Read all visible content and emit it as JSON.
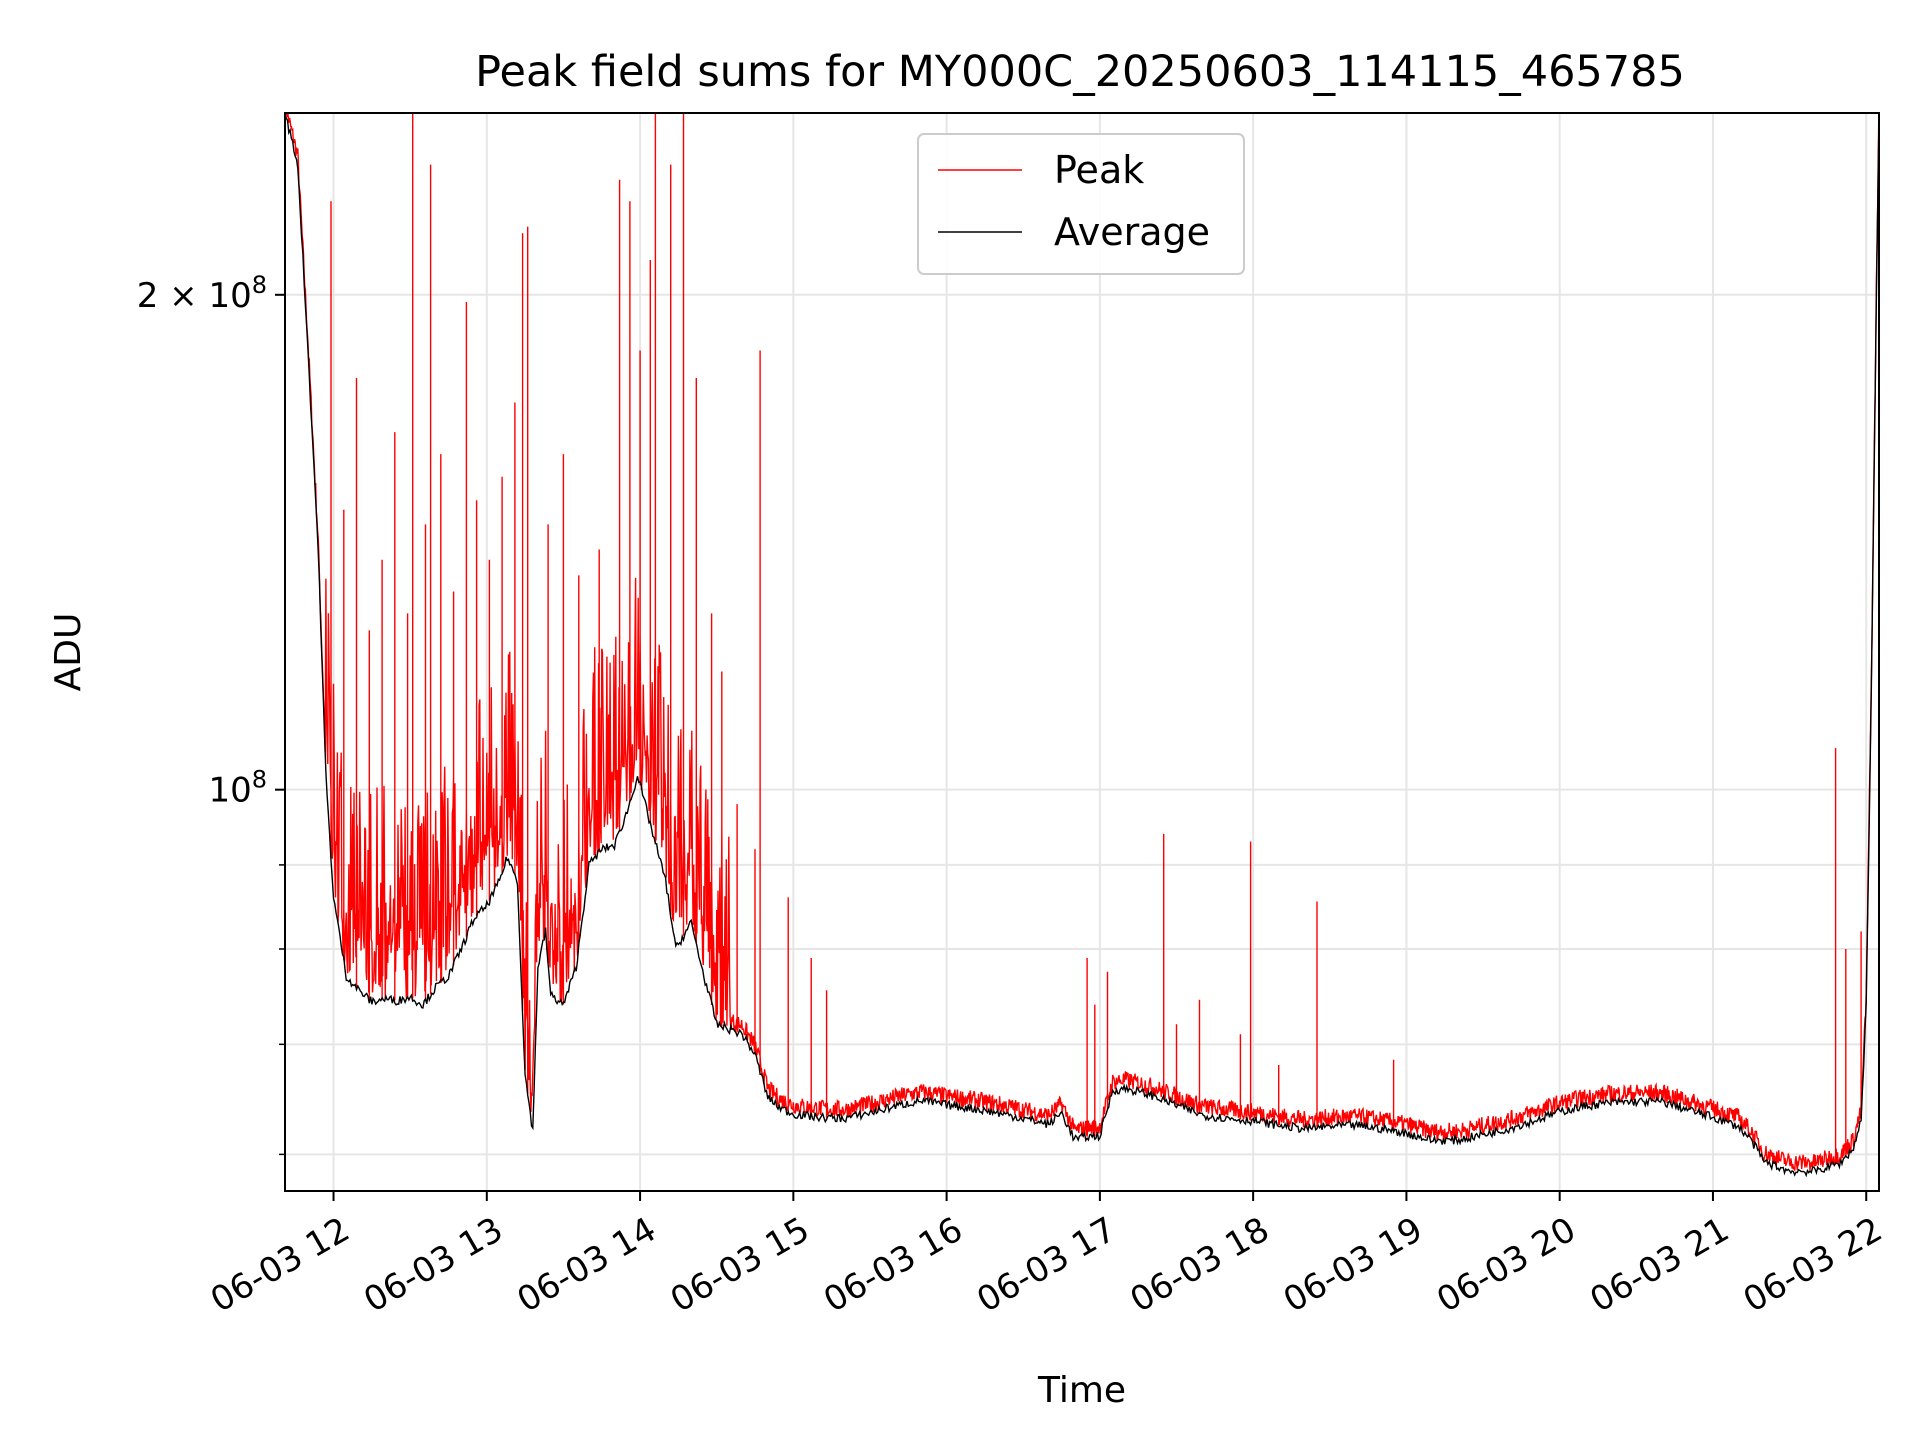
{
  "chart_data": {
    "type": "line",
    "title": "Peak field sums for MY000C_20250603_114115_465785",
    "xlabel": "Time",
    "ylabel": "ADU",
    "y_scale": "log",
    "ylim": [
      57000000,
      258000000
    ],
    "xlim": [
      "2025-06-03 11:41",
      "2025-06-03 22:05"
    ],
    "grid": true,
    "legend_position": "top-center",
    "x_ticks": [
      {
        "t": "2025-06-03 12:00",
        "label": "06-03 12"
      },
      {
        "t": "2025-06-03 13:00",
        "label": "06-03 13"
      },
      {
        "t": "2025-06-03 14:00",
        "label": "06-03 14"
      },
      {
        "t": "2025-06-03 15:00",
        "label": "06-03 15"
      },
      {
        "t": "2025-06-03 16:00",
        "label": "06-03 16"
      },
      {
        "t": "2025-06-03 17:00",
        "label": "06-03 17"
      },
      {
        "t": "2025-06-03 18:00",
        "label": "06-03 18"
      },
      {
        "t": "2025-06-03 19:00",
        "label": "06-03 19"
      },
      {
        "t": "2025-06-03 20:00",
        "label": "06-03 20"
      },
      {
        "t": "2025-06-03 21:00",
        "label": "06-03 21"
      },
      {
        "t": "2025-06-03 22:00",
        "label": "06-03 22"
      }
    ],
    "y_major_ticks": [
      {
        "value": 100000000,
        "base": "10",
        "exp": "8",
        "coef": ""
      },
      {
        "value": 200000000,
        "base": "10",
        "exp": "8",
        "coef": "2 × "
      }
    ],
    "y_minor_ticks": [
      60000000,
      70000000,
      80000000,
      90000000
    ],
    "series": [
      {
        "name": "Average",
        "color": "#000000",
        "points": [
          [
            "2025-06-03 11:41",
            258000000
          ],
          [
            "2025-06-03 11:46",
            240000000
          ],
          [
            "2025-06-03 11:50",
            185000000
          ],
          [
            "2025-06-03 11:54",
            140000000
          ],
          [
            "2025-06-03 11:57",
            102000000
          ],
          [
            "2025-06-03 12:00",
            86000000
          ],
          [
            "2025-06-03 12:05",
            77000000
          ],
          [
            "2025-06-03 12:10",
            75500000
          ],
          [
            "2025-06-03 12:15",
            74300000
          ],
          [
            "2025-06-03 12:20",
            74600000
          ],
          [
            "2025-06-03 12:25",
            74400000
          ],
          [
            "2025-06-03 12:30",
            74800000
          ],
          [
            "2025-06-03 12:35",
            74000000
          ],
          [
            "2025-06-03 12:40",
            75800000
          ],
          [
            "2025-06-03 12:45",
            77000000
          ],
          [
            "2025-06-03 12:50",
            80000000
          ],
          [
            "2025-06-03 12:55",
            83500000
          ],
          [
            "2025-06-03 13:00",
            85000000
          ],
          [
            "2025-06-03 13:05",
            88000000
          ],
          [
            "2025-06-03 13:08",
            91000000
          ],
          [
            "2025-06-03 13:12",
            88000000
          ],
          [
            "2025-06-03 13:15",
            67000000
          ],
          [
            "2025-06-03 13:18",
            62000000
          ],
          [
            "2025-06-03 13:20",
            78000000
          ],
          [
            "2025-06-03 13:23",
            82000000
          ],
          [
            "2025-06-03 13:25",
            75000000
          ],
          [
            "2025-06-03 13:30",
            74000000
          ],
          [
            "2025-06-03 13:35",
            78000000
          ],
          [
            "2025-06-03 13:40",
            90000000
          ],
          [
            "2025-06-03 13:45",
            92000000
          ],
          [
            "2025-06-03 13:50",
            92500000
          ],
          [
            "2025-06-03 13:55",
            97000000
          ],
          [
            "2025-06-03 13:59",
            102000000
          ],
          [
            "2025-06-03 14:05",
            94000000
          ],
          [
            "2025-06-03 14:10",
            88000000
          ],
          [
            "2025-06-03 14:14",
            80000000
          ],
          [
            "2025-06-03 14:20",
            83000000
          ],
          [
            "2025-06-03 14:25",
            77000000
          ],
          [
            "2025-06-03 14:30",
            72000000
          ],
          [
            "2025-06-03 14:35",
            71500000
          ],
          [
            "2025-06-03 14:40",
            71000000
          ],
          [
            "2025-06-03 14:45",
            69000000
          ],
          [
            "2025-06-03 14:50",
            65000000
          ],
          [
            "2025-06-03 14:55",
            64000000
          ],
          [
            "2025-06-03 15:00",
            63500000
          ],
          [
            "2025-06-03 15:10",
            63200000
          ],
          [
            "2025-06-03 15:20",
            63100000
          ],
          [
            "2025-06-03 15:30",
            63600000
          ],
          [
            "2025-06-03 15:40",
            64200000
          ],
          [
            "2025-06-03 15:50",
            64700000
          ],
          [
            "2025-06-03 16:00",
            64300000
          ],
          [
            "2025-06-03 16:10",
            64000000
          ],
          [
            "2025-06-03 16:20",
            63600000
          ],
          [
            "2025-06-03 16:30",
            63100000
          ],
          [
            "2025-06-03 16:40",
            62600000
          ],
          [
            "2025-06-03 16:45",
            63600000
          ],
          [
            "2025-06-03 16:50",
            61300000
          ],
          [
            "2025-06-03 16:55",
            61500000
          ],
          [
            "2025-06-03 17:00",
            61600000
          ],
          [
            "2025-06-03 17:05",
            65600000
          ],
          [
            "2025-06-03 17:10",
            65800000
          ],
          [
            "2025-06-03 17:20",
            65200000
          ],
          [
            "2025-06-03 17:30",
            64300000
          ],
          [
            "2025-06-03 17:40",
            63400000
          ],
          [
            "2025-06-03 17:50",
            63100000
          ],
          [
            "2025-06-03 18:00",
            62900000
          ],
          [
            "2025-06-03 18:10",
            62500000
          ],
          [
            "2025-06-03 18:20",
            62200000
          ],
          [
            "2025-06-03 18:30",
            62400000
          ],
          [
            "2025-06-03 18:40",
            62500000
          ],
          [
            "2025-06-03 18:50",
            62200000
          ],
          [
            "2025-06-03 19:00",
            61800000
          ],
          [
            "2025-06-03 19:10",
            61200000
          ],
          [
            "2025-06-03 19:20",
            61200000
          ],
          [
            "2025-06-03 19:30",
            61700000
          ],
          [
            "2025-06-03 19:40",
            62200000
          ],
          [
            "2025-06-03 19:50",
            62900000
          ],
          [
            "2025-06-03 20:00",
            63700000
          ],
          [
            "2025-06-03 20:10",
            64200000
          ],
          [
            "2025-06-03 20:20",
            64500000
          ],
          [
            "2025-06-03 20:30",
            64600000
          ],
          [
            "2025-06-03 20:40",
            64600000
          ],
          [
            "2025-06-03 20:50",
            63900000
          ],
          [
            "2025-06-03 21:00",
            63200000
          ],
          [
            "2025-06-03 21:10",
            62400000
          ],
          [
            "2025-06-03 21:15",
            61200000
          ],
          [
            "2025-06-03 21:20",
            59400000
          ],
          [
            "2025-06-03 21:30",
            58600000
          ],
          [
            "2025-06-03 21:40",
            58600000
          ],
          [
            "2025-06-03 21:50",
            59300000
          ],
          [
            "2025-06-03 21:55",
            60500000
          ],
          [
            "2025-06-03 21:58",
            63000000
          ],
          [
            "2025-06-03 22:00",
            74000000
          ],
          [
            "2025-06-03 22:02",
            115000000
          ],
          [
            "2025-06-03 22:04",
            200000000
          ],
          [
            "2025-06-03 22:05",
            258000000
          ]
        ]
      },
      {
        "name": "Peak",
        "color": "#ff0000",
        "noise_band": "2025-06-03 11:57 to 2025-06-03 14:35",
        "spikes": [
          [
            "2025-06-03 11:59",
            228000000
          ],
          [
            "2025-06-03 12:04",
            148000000
          ],
          [
            "2025-06-03 12:09",
            178000000
          ],
          [
            "2025-06-03 12:14",
            125000000
          ],
          [
            "2025-06-03 12:19",
            138000000
          ],
          [
            "2025-06-03 12:24",
            165000000
          ],
          [
            "2025-06-03 12:29",
            128000000
          ],
          [
            "2025-06-03 12:31",
            258000000
          ],
          [
            "2025-06-03 12:36",
            145000000
          ],
          [
            "2025-06-03 12:38",
            240000000
          ],
          [
            "2025-06-03 12:42",
            160000000
          ],
          [
            "2025-06-03 12:47",
            132000000
          ],
          [
            "2025-06-03 12:52",
            198000000
          ],
          [
            "2025-06-03 12:56",
            150000000
          ],
          [
            "2025-06-03 13:01",
            138000000
          ],
          [
            "2025-06-03 13:06",
            155000000
          ],
          [
            "2025-06-03 13:11",
            172000000
          ],
          [
            "2025-06-03 13:14",
            218000000
          ],
          [
            "2025-06-03 13:16",
            220000000
          ],
          [
            "2025-06-03 13:24",
            145000000
          ],
          [
            "2025-06-03 13:30",
            160000000
          ],
          [
            "2025-06-03 13:36",
            135000000
          ],
          [
            "2025-06-03 13:44",
            140000000
          ],
          [
            "2025-06-03 13:52",
            235000000
          ],
          [
            "2025-06-03 13:56",
            228000000
          ],
          [
            "2025-06-03 14:00",
            185000000
          ],
          [
            "2025-06-03 14:04",
            210000000
          ],
          [
            "2025-06-03 14:06",
            258000000
          ],
          [
            "2025-06-03 14:12",
            240000000
          ],
          [
            "2025-06-03 14:17",
            258000000
          ],
          [
            "2025-06-03 14:22",
            178000000
          ],
          [
            "2025-06-03 14:28",
            128000000
          ],
          [
            "2025-06-03 14:32",
            118000000
          ],
          [
            "2025-06-03 14:38",
            98000000
          ],
          [
            "2025-06-03 14:45",
            92000000
          ],
          [
            "2025-06-03 14:47",
            185000000
          ],
          [
            "2025-06-03 14:58",
            86000000
          ],
          [
            "2025-06-03 15:07",
            79000000
          ],
          [
            "2025-06-03 15:13",
            75500000
          ],
          [
            "2025-06-03 16:55",
            79000000
          ],
          [
            "2025-06-03 16:58",
            74000000
          ],
          [
            "2025-06-03 17:03",
            77500000
          ],
          [
            "2025-06-03 17:25",
            94000000
          ],
          [
            "2025-06-03 17:30",
            72000000
          ],
          [
            "2025-06-03 17:39",
            74500000
          ],
          [
            "2025-06-03 17:55",
            71000000
          ],
          [
            "2025-06-03 17:59",
            93000000
          ],
          [
            "2025-06-03 18:25",
            85500000
          ],
          [
            "2025-06-03 18:10",
            68000000
          ],
          [
            "2025-06-03 18:55",
            68500000
          ],
          [
            "2025-06-03 21:48",
            106000000
          ],
          [
            "2025-06-03 21:52",
            80000000
          ],
          [
            "2025-06-03 21:58",
            82000000
          ]
        ]
      }
    ]
  }
}
